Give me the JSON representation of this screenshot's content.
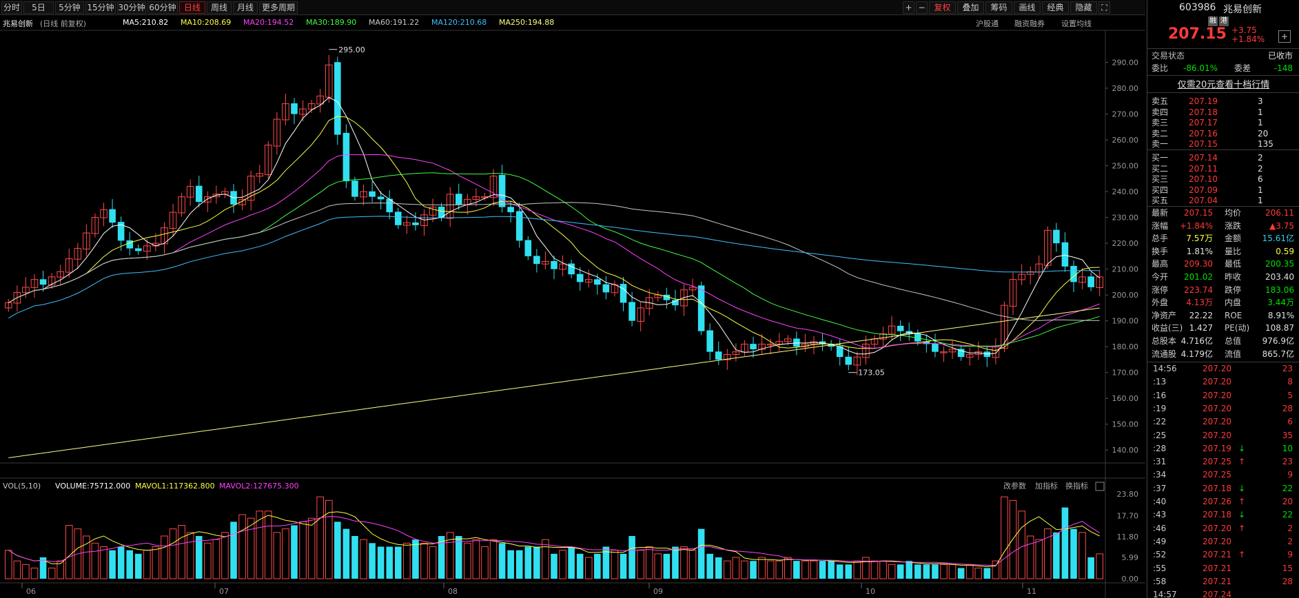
{
  "toolbar": {
    "periods": [
      "分时",
      "5日",
      "5分钟",
      "15分钟",
      "30分钟",
      "60分钟",
      "日线",
      "周线",
      "月线",
      "更多周期"
    ],
    "active": "日线",
    "right": [
      "+",
      "−",
      "复权",
      "叠加",
      "筹码",
      "画线",
      "经典",
      "隐藏",
      "⛶"
    ]
  },
  "info": {
    "name": "兆易创新",
    "mode": "(日线 前复权)",
    "ma": [
      {
        "label": "MA5:210.82",
        "color": "#ffffff"
      },
      {
        "label": "MA10:208.69",
        "color": "#ffff40"
      },
      {
        "label": "MA20:194.52",
        "color": "#ff40ff"
      },
      {
        "label": "MA30:189.90",
        "color": "#40ff40"
      },
      {
        "label": "MA60:191.22",
        "color": "#c8c8c8"
      },
      {
        "label": "MA120:210.68",
        "color": "#40c0ff"
      },
      {
        "label": "MA250:194.88",
        "color": "#ffff80"
      }
    ],
    "links": [
      "沪股通",
      "融资融券",
      "设置均线"
    ]
  },
  "price_axis": [
    "290.00",
    "280.00",
    "270.00",
    "260.00",
    "250.00",
    "240.00",
    "230.00",
    "220.00",
    "210.00",
    "200.00",
    "190.00",
    "180.00",
    "170.00",
    "160.00",
    "150.00",
    "140.00"
  ],
  "max_label": "295.00",
  "min_label": "173.05",
  "vol": {
    "label": "VOL(5,10)",
    "volume": "VOLUME:75712.000",
    "mavol1": "MAVOL1:117362.800",
    "mavol2": "MAVOL2:127675.300",
    "axis": [
      "23.80",
      "17.70",
      "11.80",
      "5.99",
      "0.00"
    ],
    "links": [
      "改参数",
      "加指标",
      "换指标"
    ]
  },
  "xaxis": [
    "06",
    "07",
    "08",
    "09",
    "10",
    "11"
  ],
  "chart_data": {
    "type": "candlestick",
    "ylim": [
      135,
      296
    ],
    "closes": [
      197,
      201,
      203,
      206,
      204,
      207,
      209,
      214,
      218,
      224,
      230,
      233,
      228,
      221,
      218,
      217,
      219,
      220,
      226,
      232,
      238,
      242,
      236,
      238,
      239,
      240,
      235,
      237,
      246,
      247,
      258,
      268,
      274,
      270,
      272,
      274,
      277,
      289,
      262,
      244,
      238,
      240,
      238,
      237,
      232,
      227,
      228,
      227,
      231,
      234,
      230,
      239,
      235,
      237,
      238,
      238,
      246,
      234,
      232,
      221,
      215,
      212,
      213,
      210,
      212,
      208,
      205,
      206,
      204,
      201,
      204,
      197,
      190,
      195,
      199,
      200,
      198,
      196,
      202,
      203,
      186,
      178,
      175,
      177,
      178,
      181,
      179,
      181,
      181,
      182,
      183,
      180,
      181,
      182,
      181,
      180,
      176,
      173,
      176,
      181,
      183,
      185,
      188,
      186,
      185,
      182,
      181,
      178,
      178,
      179,
      176,
      177,
      178,
      176,
      180,
      196,
      206,
      208,
      209,
      212,
      225,
      220,
      211,
      205,
      207,
      203,
      207
    ],
    "vol": [
      8,
      5,
      4,
      3,
      6,
      3,
      5,
      15,
      14,
      12,
      10,
      9,
      8,
      9,
      8,
      7,
      8,
      9,
      12,
      14,
      15,
      13,
      12,
      10,
      11,
      13,
      16,
      18,
      17,
      19,
      19,
      13,
      14,
      15,
      16,
      17,
      23,
      22,
      16,
      14,
      12,
      11,
      10,
      9,
      9,
      9,
      10,
      11,
      10,
      9,
      12,
      13,
      12,
      10,
      11,
      9,
      11,
      10,
      8,
      8,
      9,
      9,
      11,
      7,
      8,
      9,
      7,
      6,
      7,
      9,
      8,
      7,
      12,
      8,
      9,
      7,
      7,
      9,
      9,
      8,
      14,
      7,
      6,
      5,
      6,
      5,
      5,
      6,
      5,
      5,
      6,
      5,
      5,
      5,
      5,
      5,
      4,
      4,
      5,
      6,
      5,
      5,
      4,
      4,
      5,
      4,
      4,
      4,
      4,
      4,
      3,
      4,
      3,
      3,
      5,
      23,
      22,
      19,
      12,
      11,
      14,
      13,
      20,
      14,
      13,
      6,
      7
    ]
  },
  "right": {
    "code": "603986",
    "name": "兆易创新",
    "tags": [
      "融",
      "港"
    ],
    "price": "207.15",
    "change": "+3.75",
    "pct": "+1.84%",
    "status_label": "交易状态",
    "status": "已收市",
    "wb_label": "委比",
    "wb": "-86.01%",
    "wc_label": "委差",
    "wc": "-148",
    "promo": "仅需20元查看十档行情",
    "sells": [
      {
        "n": "卖五",
        "p": "207.19",
        "v": "3"
      },
      {
        "n": "卖四",
        "p": "207.18",
        "v": "1"
      },
      {
        "n": "卖三",
        "p": "207.17",
        "v": "1"
      },
      {
        "n": "卖二",
        "p": "207.16",
        "v": "20"
      },
      {
        "n": "卖一",
        "p": "207.15",
        "v": "135"
      }
    ],
    "buys": [
      {
        "n": "买一",
        "p": "207.14",
        "v": "2"
      },
      {
        "n": "买二",
        "p": "207.11",
        "v": "2"
      },
      {
        "n": "买三",
        "p": "207.10",
        "v": "6"
      },
      {
        "n": "买四",
        "p": "207.09",
        "v": "1"
      },
      {
        "n": "买五",
        "p": "207.04",
        "v": "1"
      }
    ],
    "stats": [
      [
        "最新",
        "207.15",
        "均价",
        "206.11"
      ],
      [
        "涨幅",
        "+1.84%",
        "涨跌",
        "▲3.75"
      ],
      [
        "总手",
        "7.57万",
        "金额",
        "15.61亿"
      ],
      [
        "换手",
        "1.81%",
        "量比",
        "0.59"
      ],
      [
        "最高",
        "209.30",
        "最低",
        "200.35"
      ],
      [
        "今开",
        "201.02",
        "昨收",
        "203.40"
      ],
      [
        "涨停",
        "223.74",
        "跌停",
        "183.06"
      ],
      [
        "外盘",
        "4.13万",
        "内盘",
        "3.44万"
      ],
      [
        "净资产",
        "22.22",
        "ROE",
        "8.91%"
      ],
      [
        "收益(三)",
        "1.427",
        "PE(动)",
        "108.87"
      ],
      [
        "总股本",
        "4.716亿",
        "总值",
        "976.9亿"
      ],
      [
        "流通股",
        "4.179亿",
        "流值",
        "865.7亿"
      ]
    ],
    "ticks": [
      [
        "14:56",
        "207.20",
        "23",
        ""
      ],
      [
        ":13",
        "207.20",
        "8",
        ""
      ],
      [
        ":16",
        "207.20",
        "5",
        ""
      ],
      [
        ":19",
        "207.20",
        "28",
        ""
      ],
      [
        ":22",
        "207.20",
        "6",
        ""
      ],
      [
        ":25",
        "207.20",
        "35",
        ""
      ],
      [
        ":28",
        "207.19",
        "10",
        "dn"
      ],
      [
        ":31",
        "207.25",
        "23",
        "up"
      ],
      [
        ":34",
        "207.25",
        "9",
        ""
      ],
      [
        ":37",
        "207.18",
        "22",
        "dn"
      ],
      [
        ":40",
        "207.26",
        "20",
        "up"
      ],
      [
        ":43",
        "207.18",
        "22",
        "dn"
      ],
      [
        ":46",
        "207.20",
        "2",
        "up"
      ],
      [
        ":49",
        "207.20",
        "2",
        ""
      ],
      [
        ":52",
        "207.21",
        "9",
        "up"
      ],
      [
        ":55",
        "207.21",
        "15",
        ""
      ],
      [
        ":58",
        "207.21",
        "28",
        ""
      ],
      [
        "14:57",
        "207.24",
        "",
        ""
      ]
    ]
  }
}
